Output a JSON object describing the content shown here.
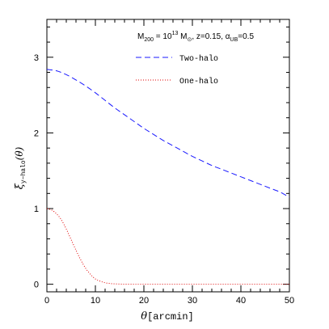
{
  "chart_data": {
    "type": "line",
    "annotation": {
      "m_sym": "M",
      "m_sub": "200",
      "eq_mid": " = 10",
      "m_exp": "13",
      "msun": " M",
      "sun_sub": "⊙",
      "z_part": ", z=0.15, ",
      "alpha": "α",
      "alpha_sub": "UB",
      "alpha_val": "=0.5"
    },
    "xlabel": {
      "symbol": "θ",
      "unit": "[arcmin]"
    },
    "ylabel": {
      "base": "ξ",
      "sub": "y−halo",
      "arg": "(θ)"
    },
    "xlim": [
      0,
      50
    ],
    "ylim": [
      -0.1,
      3.5
    ],
    "xticks": [
      0,
      10,
      20,
      30,
      40,
      50
    ],
    "yticks": [
      0,
      1,
      2,
      3
    ],
    "legend_position": "top-right",
    "series": [
      {
        "name": "Two-halo",
        "color": "#1a1aff",
        "dash": "dashed",
        "x": [
          0,
          2,
          4,
          6,
          8,
          10,
          12,
          14,
          16,
          18,
          20,
          22,
          24,
          26,
          28,
          30,
          32,
          34,
          36,
          38,
          40,
          42,
          44,
          46,
          48,
          50
        ],
        "y": [
          2.84,
          2.82,
          2.77,
          2.7,
          2.62,
          2.53,
          2.43,
          2.33,
          2.24,
          2.15,
          2.06,
          1.98,
          1.9,
          1.83,
          1.76,
          1.69,
          1.63,
          1.57,
          1.52,
          1.47,
          1.42,
          1.37,
          1.32,
          1.27,
          1.22,
          1.15
        ]
      },
      {
        "name": "One-halo",
        "color": "#e00000",
        "dash": "dotted",
        "x": [
          0,
          1,
          2,
          3,
          4,
          5,
          6,
          7,
          8,
          9,
          10,
          11,
          12,
          13,
          14,
          15,
          16,
          18,
          20,
          25,
          30,
          35,
          40,
          45,
          50
        ],
        "y": [
          1.0,
          0.98,
          0.93,
          0.85,
          0.73,
          0.59,
          0.45,
          0.32,
          0.21,
          0.13,
          0.07,
          0.04,
          0.02,
          0.01,
          0.005,
          0.002,
          0.0,
          0.0,
          0.0,
          0.0,
          0.0,
          0.0,
          0.0,
          0.0,
          0.0
        ]
      }
    ]
  }
}
